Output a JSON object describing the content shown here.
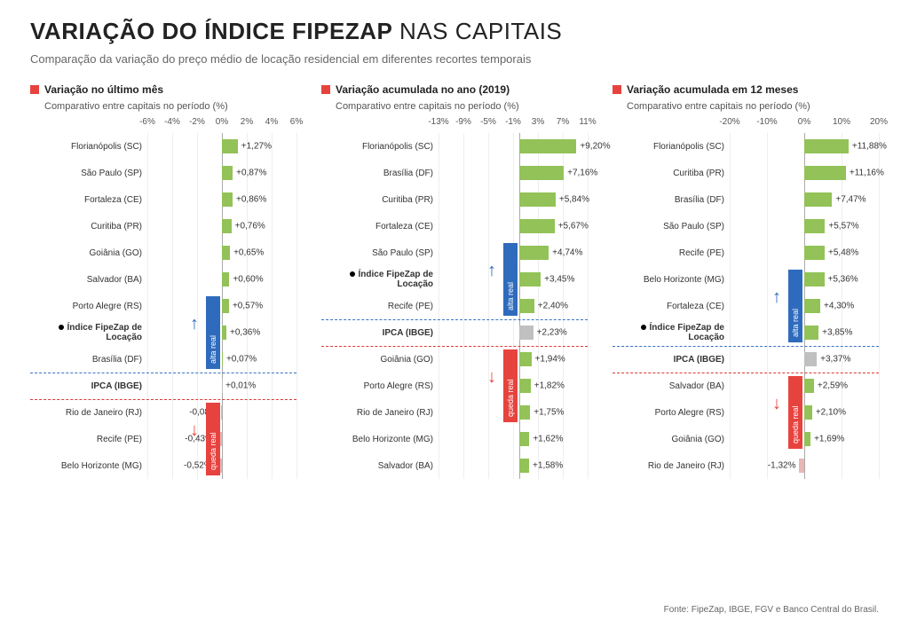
{
  "title_main": "VARIAÇÃO DO ÍNDICE FIPEZAP",
  "title_sub": " NAS CAPITAIS",
  "subtitle": "Comparação da variação do preço médio de locação residencial em diferentes recortes temporais",
  "footer": "Fonte: FipeZap, IBGE, FGV e Banco Central do Brasil.",
  "colors": {
    "bar_positive": "#93c258",
    "bar_negative": "#e9b6b6",
    "bar_ipca": "#c0c0c0",
    "tag_alta_bg": "#2f6bbd",
    "tag_queda_bg": "#e7433e",
    "dash_blue": "#3a73c2",
    "dash_red": "#d93a36"
  },
  "tag_alta_label": "alta real",
  "tag_queda_label": "queda real",
  "panels": [
    {
      "id": "month",
      "title": "Variação no último mês",
      "subtitle": "Comparativo entre capitais no período (%)",
      "axis_min": -6,
      "axis_max": 6,
      "axis_ticks": [
        -6,
        -4,
        -2,
        0,
        2,
        4,
        6
      ],
      "dash_blue_after_index": 8,
      "dash_red_after_index": 9,
      "tag_alta_span": [
        6,
        8
      ],
      "tag_queda_span": [
        10,
        12
      ],
      "rows": [
        {
          "label": "Florianópolis (SC)",
          "value": 1.27,
          "display": "+1,27%",
          "kind": "pos"
        },
        {
          "label": "São Paulo (SP)",
          "value": 0.87,
          "display": "+0,87%",
          "kind": "pos"
        },
        {
          "label": "Fortaleza (CE)",
          "value": 0.86,
          "display": "+0,86%",
          "kind": "pos"
        },
        {
          "label": "Curitiba (PR)",
          "value": 0.76,
          "display": "+0,76%",
          "kind": "pos"
        },
        {
          "label": "Goiânia (GO)",
          "value": 0.65,
          "display": "+0,65%",
          "kind": "pos"
        },
        {
          "label": "Salvador (BA)",
          "value": 0.6,
          "display": "+0,60%",
          "kind": "pos"
        },
        {
          "label": "Porto Alegre (RS)",
          "value": 0.57,
          "display": "+0,57%",
          "kind": "pos"
        },
        {
          "label": "Índice FipeZap de Locação",
          "value": 0.36,
          "display": "+0,36%",
          "kind": "pos",
          "bullet": true,
          "bold": true
        },
        {
          "label": "Brasília (DF)",
          "value": 0.07,
          "display": "+0,07%",
          "kind": "pos"
        },
        {
          "label": "IPCA (IBGE)",
          "value": 0.01,
          "display": "+0,01%",
          "kind": "ipca",
          "bold": true
        },
        {
          "label": "Rio de Janeiro (RJ)",
          "value": -0.08,
          "display": "-0,08%",
          "kind": "neg"
        },
        {
          "label": "Recife (PE)",
          "value": -0.43,
          "display": "-0,43%",
          "kind": "neg"
        },
        {
          "label": "Belo Horizonte (MG)",
          "value": -0.52,
          "display": "-0,52%",
          "kind": "neg"
        }
      ]
    },
    {
      "id": "ytd",
      "title": "Variação acumulada no ano (2019)",
      "subtitle": "Comparativo entre capitais no período (%)",
      "axis_min": -13,
      "axis_max": 11,
      "axis_ticks": [
        -13,
        -9,
        -5,
        -1,
        3,
        7,
        11
      ],
      "dash_blue_after_index": 6,
      "dash_red_after_index": 7,
      "tag_alta_span": [
        4,
        6
      ],
      "tag_queda_span": [
        8,
        10
      ],
      "rows": [
        {
          "label": "Florianópolis (SC)",
          "value": 9.2,
          "display": "+9,20%",
          "kind": "pos"
        },
        {
          "label": "Brasília (DF)",
          "value": 7.16,
          "display": "+7,16%",
          "kind": "pos"
        },
        {
          "label": "Curitiba (PR)",
          "value": 5.84,
          "display": "+5,84%",
          "kind": "pos"
        },
        {
          "label": "Fortaleza (CE)",
          "value": 5.67,
          "display": "+5,67%",
          "kind": "pos"
        },
        {
          "label": "São Paulo (SP)",
          "value": 4.74,
          "display": "+4,74%",
          "kind": "pos"
        },
        {
          "label": "Índice FipeZap de Locação",
          "value": 3.45,
          "display": "+3,45%",
          "kind": "pos",
          "bullet": true,
          "bold": true
        },
        {
          "label": "Recife (PE)",
          "value": 2.4,
          "display": "+2,40%",
          "kind": "pos"
        },
        {
          "label": "IPCA (IBGE)",
          "value": 2.23,
          "display": "+2,23%",
          "kind": "ipca",
          "bold": true
        },
        {
          "label": "Goiânia (GO)",
          "value": 1.94,
          "display": "+1,94%",
          "kind": "pos"
        },
        {
          "label": "Porto Alegre (RS)",
          "value": 1.82,
          "display": "+1,82%",
          "kind": "pos"
        },
        {
          "label": "Rio de Janeiro (RJ)",
          "value": 1.75,
          "display": "+1,75%",
          "kind": "pos"
        },
        {
          "label": "Belo Horizonte (MG)",
          "value": 1.62,
          "display": "+1,62%",
          "kind": "pos"
        },
        {
          "label": "Salvador (BA)",
          "value": 1.58,
          "display": "+1,58%",
          "kind": "pos"
        }
      ]
    },
    {
      "id": "y12",
      "title": "Variação acumulada em 12 meses",
      "subtitle": "Comparativo entre capitais no período (%)",
      "axis_min": -20,
      "axis_max": 20,
      "axis_ticks": [
        -20,
        -10,
        0,
        10,
        20
      ],
      "dash_blue_after_index": 7,
      "dash_red_after_index": 8,
      "tag_alta_span": [
        5,
        7
      ],
      "tag_queda_span": [
        9,
        11
      ],
      "rows": [
        {
          "label": "Florianópolis (SC)",
          "value": 11.88,
          "display": "+11,88%",
          "kind": "pos"
        },
        {
          "label": "Curitiba (PR)",
          "value": 11.16,
          "display": "+11,16%",
          "kind": "pos"
        },
        {
          "label": "Brasília (DF)",
          "value": 7.47,
          "display": "+7,47%",
          "kind": "pos"
        },
        {
          "label": "São Paulo (SP)",
          "value": 5.57,
          "display": "+5,57%",
          "kind": "pos"
        },
        {
          "label": "Recife (PE)",
          "value": 5.48,
          "display": "+5,48%",
          "kind": "pos"
        },
        {
          "label": "Belo Horizonte (MG)",
          "value": 5.36,
          "display": "+5,36%",
          "kind": "pos"
        },
        {
          "label": "Fortaleza (CE)",
          "value": 4.3,
          "display": "+4,30%",
          "kind": "pos"
        },
        {
          "label": "Índice FipeZap de Locação",
          "value": 3.85,
          "display": "+3,85%",
          "kind": "pos",
          "bullet": true,
          "bold": true
        },
        {
          "label": "IPCA (IBGE)",
          "value": 3.37,
          "display": "+3,37%",
          "kind": "ipca",
          "bold": true
        },
        {
          "label": "Salvador (BA)",
          "value": 2.59,
          "display": "+2,59%",
          "kind": "pos"
        },
        {
          "label": "Porto Alegre (RS)",
          "value": 2.1,
          "display": "+2,10%",
          "kind": "pos"
        },
        {
          "label": "Goiânia (GO)",
          "value": 1.69,
          "display": "+1,69%",
          "kind": "pos"
        },
        {
          "label": "Rio de Janeiro (RJ)",
          "value": -1.32,
          "display": "-1,32%",
          "kind": "neg"
        }
      ]
    }
  ]
}
